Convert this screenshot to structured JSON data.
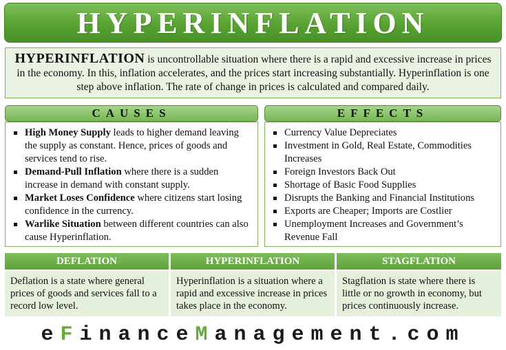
{
  "title": "HYPERINFLATION",
  "intro": {
    "lead": "HYPERINFLATION",
    "text": " is uncontrollable situation where there is a rapid and excessive increase in prices in the economy. In this, inflation accelerates, and the prices start increasing substantially. Hyperinflation is one step above inflation. The rate of change in prices is calculated and compared daily."
  },
  "causes": {
    "heading": "CAUSES",
    "items": [
      {
        "bold": "High Money Supply",
        "text": " leads to higher demand leaving the supply as constant. Hence, prices of goods and services tend to rise."
      },
      {
        "bold": "Demand-Pull Inflation",
        "text": " where there is a sudden increase in demand with constant supply."
      },
      {
        "bold": "Market Loses Confidence",
        "text": " where citizens start losing confidence in the currency."
      },
      {
        "bold": "Warlike Situation",
        "text": " between different countries can also cause Hyperinflation."
      }
    ]
  },
  "effects": {
    "heading": "EFFECTS",
    "items": [
      "Currency Value Depreciates",
      "Investment in Gold, Real Estate, Commodities Increases",
      "Foreign Investors Back Out",
      "Shortage of Basic Food Supplies",
      "Disrupts the Banking and Financial Institutions",
      "Exports are Cheaper; Imports are Costlier",
      "Unemployment Increases and Government’s Revenue Fall"
    ]
  },
  "comparison": [
    {
      "heading": "DEFLATION",
      "text": "Deflation is a state where general prices of goods and services fall to a record low level."
    },
    {
      "heading": "HYPERINFLATION",
      "text": "Hyperinflation is a situation where a rapid and excessive increase in prices takes place in the economy."
    },
    {
      "heading": "STAGFLATION",
      "text": "Stagflation is state where there is little or no growth in economy, but prices continuously increase."
    }
  ],
  "footer": {
    "part1": "e",
    "accent1": "F",
    "part2": "inance",
    "accent2": "M",
    "part3": "anagement.com"
  },
  "colors": {
    "title_green": "#57a232",
    "accent_green": "#62ab39",
    "panel_bg": "#eaf3e1"
  }
}
